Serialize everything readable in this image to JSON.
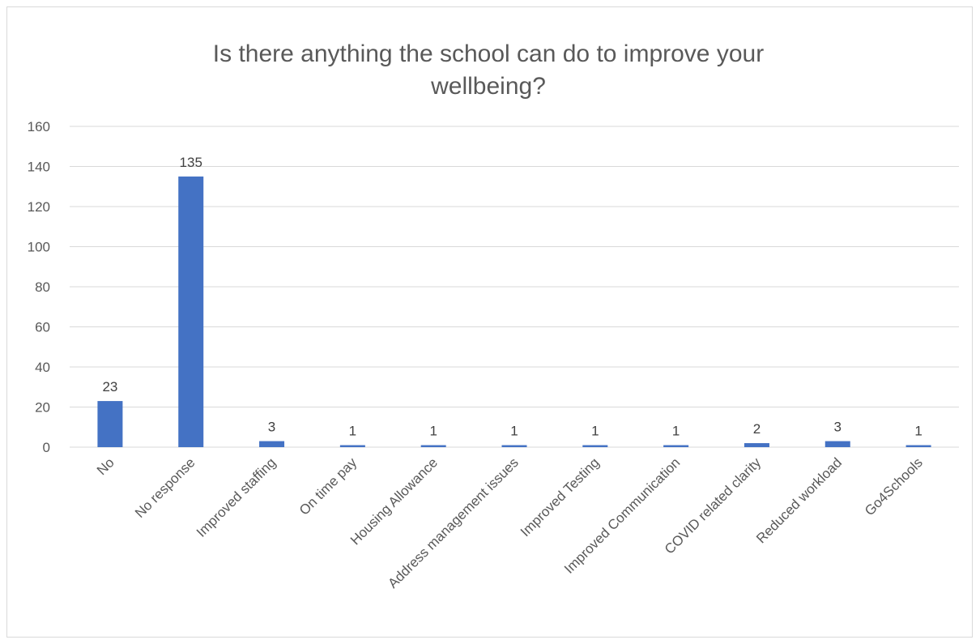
{
  "chart_data": {
    "type": "bar",
    "title": "Is there anything the school can do to improve your wellbeing?",
    "title_lines": [
      "Is there anything the school can do to improve your",
      "wellbeing?"
    ],
    "xlabel": "",
    "ylabel": "",
    "categories": [
      "No",
      "No response",
      "Improved staffing",
      "On time pay",
      "Housing Allowance",
      "Address management issues",
      "Improved Testing",
      "Improved Communication",
      "COVID related clarity",
      "Reduced workload",
      "Go4Schools"
    ],
    "values": [
      23,
      135,
      3,
      1,
      1,
      1,
      1,
      1,
      2,
      3,
      1
    ],
    "data_labels": [
      "23",
      "135",
      "3",
      "1",
      "1",
      "1",
      "1",
      "1",
      "2",
      "3",
      "1"
    ],
    "ylim": [
      0,
      160
    ],
    "yticks": [
      0,
      20,
      40,
      60,
      80,
      100,
      120,
      140,
      160
    ],
    "ytick_labels": [
      "0",
      "20",
      "40",
      "60",
      "80",
      "100",
      "120",
      "140",
      "160"
    ],
    "grid": true,
    "legend": "none",
    "colors": {
      "bar": "#4472C4",
      "grid": "#d9d9d9",
      "text": "#595959",
      "frame": "#d9d9d9"
    }
  }
}
